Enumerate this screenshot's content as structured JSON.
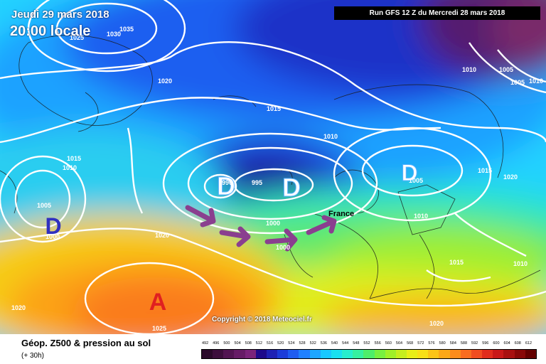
{
  "header": {
    "date": "Jeudi 29 mars 2018",
    "time": "20:00 locale",
    "run": "Run GFS 12 Z du Mercredi 28 mars 2018"
  },
  "map": {
    "pressure_systems": [
      {
        "type": "low",
        "label": "D"
      },
      {
        "type": "low",
        "label": "D"
      },
      {
        "type": "low",
        "label": "D"
      },
      {
        "type": "low",
        "label": "D"
      },
      {
        "type": "high",
        "label": "A"
      }
    ],
    "isobar_labels": [
      "1035",
      "1025",
      "1030",
      "1020",
      "1015",
      "1010",
      "1010",
      "1005",
      "1015",
      "1010",
      "1005",
      "1000",
      "1020",
      "1020",
      "1025",
      "990",
      "995",
      "1000",
      "1000",
      "1005",
      "1015",
      "1020",
      "1010",
      "1015",
      "1010",
      "1020",
      "1010",
      "1005"
    ],
    "place_label": "France",
    "copyright": "Copyright © 2018 Meteociel.fr",
    "arrow_color": "#8a3f8f"
  },
  "legend": {
    "title": "Géop. Z500 & pression au sol",
    "subtitle": "(+ 30h)",
    "values": [
      "492",
      "496",
      "500",
      "504",
      "508",
      "512",
      "516",
      "520",
      "524",
      "528",
      "532",
      "536",
      "540",
      "544",
      "548",
      "552",
      "556",
      "560",
      "564",
      "568",
      "572",
      "576",
      "580",
      "584",
      "588",
      "592",
      "596",
      "600",
      "604",
      "608",
      "612"
    ],
    "colors": [
      "#2a0a2a",
      "#3d0f3d",
      "#521552",
      "#661c66",
      "#7a247a",
      "#1d0a8a",
      "#1e22b4",
      "#1c3cd8",
      "#1f5cf0",
      "#2080ff",
      "#1ea6ff",
      "#18c8ff",
      "#19e0f0",
      "#27eecd",
      "#36f0a0",
      "#4eee6a",
      "#78f040",
      "#a0f028",
      "#c6ee1e",
      "#e8ee18",
      "#f8e018",
      "#fcc418",
      "#fca818",
      "#fc8c1c",
      "#f86c20",
      "#f04c20",
      "#e02c1c",
      "#c81818",
      "#a81010",
      "#880808",
      "#640000"
    ]
  }
}
